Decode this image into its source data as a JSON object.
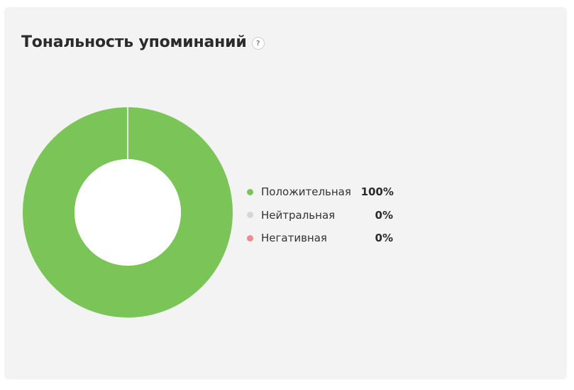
{
  "widget": {
    "title": "Тональность упоминаний",
    "help_icon": "question-mark-icon",
    "help_glyph": "?"
  },
  "colors": {
    "positive": "#7bc558",
    "neutral": "#d6d6d6",
    "negative": "#f28b8f",
    "card_background": "#f3f3f3"
  },
  "chart_data": {
    "type": "pie",
    "variant": "donut",
    "title": "Тональность упоминаний",
    "legend_position": "right",
    "categories": [
      "Положительная",
      "Нейтральная",
      "Негативная"
    ],
    "values": [
      100,
      0,
      0
    ],
    "value_labels": [
      "100%",
      "0%",
      "0%"
    ],
    "unit": "%"
  }
}
